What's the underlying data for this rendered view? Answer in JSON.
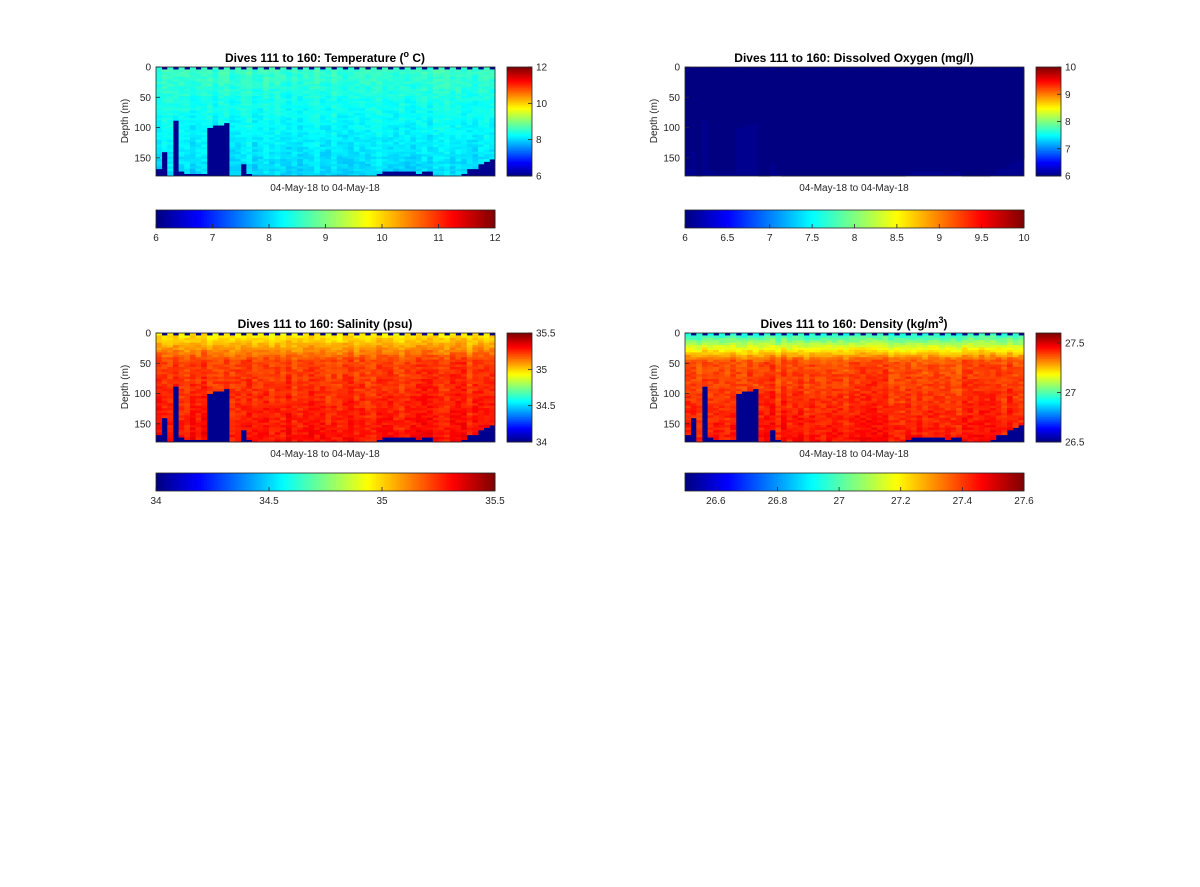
{
  "chart_data": [
    {
      "type": "heatmap",
      "title": "Dives 111 to 160: Temperature (",
      "title_sup": "o",
      "title_end": " C)",
      "xlabel": "04-May-18 to 04-May-18",
      "ylabel": "Depth (m)",
      "yticks": [
        "0",
        "50",
        "100",
        "150"
      ],
      "ylim": [
        0,
        180
      ],
      "yreversed": true,
      "colormap": "jet",
      "clim": [
        6,
        12
      ],
      "side_colorbar_ticks": [
        "6",
        "8",
        "10",
        "12"
      ],
      "bottom_colorbar_ticks": [
        "6",
        "7",
        "8",
        "9",
        "10",
        "11",
        "12"
      ],
      "field": {
        "surface": 8.6,
        "mid": 8.4,
        "deep": 8.0,
        "variance": 0.25
      },
      "gap_color": "#00008f"
    },
    {
      "type": "heatmap",
      "title": "Dives 111 to 160: Dissolved Oxygen (mg/l)",
      "title_sup": "",
      "title_end": "",
      "xlabel": "04-May-18 to 04-May-18",
      "ylabel": "Depth (m)",
      "yticks": [
        "0",
        "50",
        "100",
        "150"
      ],
      "ylim": [
        0,
        180
      ],
      "yreversed": true,
      "colormap": "jet",
      "clim": [
        6,
        10
      ],
      "side_colorbar_ticks": [
        "6",
        "7",
        "8",
        "9",
        "10"
      ],
      "bottom_colorbar_ticks": [
        "6",
        "6.5",
        "7",
        "7.5",
        "8",
        "8.5",
        "9",
        "9.5",
        "10"
      ],
      "uniform_value": 6,
      "gap_color": "#00008f"
    },
    {
      "type": "heatmap",
      "title": "Dives 111 to 160: Salinity (psu)",
      "title_sup": "",
      "title_end": "",
      "xlabel": "04-May-18 to 04-May-18",
      "ylabel": "Depth (m)",
      "yticks": [
        "0",
        "50",
        "100",
        "150"
      ],
      "ylim": [
        0,
        180
      ],
      "yreversed": true,
      "colormap": "jet",
      "clim": [
        34,
        35.5
      ],
      "side_colorbar_ticks": [
        "34",
        "34.5",
        "35",
        "35.5"
      ],
      "bottom_colorbar_ticks": [
        "34",
        "34.5",
        "35",
        "35.5"
      ],
      "field": {
        "surface": 34.95,
        "mid": 35.22,
        "deep": 35.3,
        "variance": 0.08
      },
      "gap_color": "#00008f"
    },
    {
      "type": "heatmap",
      "title": "Dives 111 to 160: Density (kg/m",
      "title_sup": "3",
      "title_end": ")",
      "xlabel": "04-May-18 to 04-May-18",
      "ylabel": "Depth (m)",
      "yticks": [
        "0",
        "50",
        "100",
        "150"
      ],
      "ylim": [
        0,
        180
      ],
      "yreversed": true,
      "colormap": "jet",
      "clim": [
        26.5,
        27.6
      ],
      "side_colorbar_ticks": [
        "26.5",
        "27",
        "27.5"
      ],
      "bottom_colorbar_ticks": [
        "26.6",
        "26.8",
        "27",
        "27.2",
        "27.4",
        "27.6"
      ],
      "bottom_colorbar_min": 26.5,
      "field": {
        "surface": 26.95,
        "mid": 27.38,
        "deep": 27.45,
        "variance": 0.06
      },
      "gap_color": "#00008f"
    }
  ],
  "profile_depths": [
    165,
    140,
    180,
    88,
    170,
    175,
    175,
    175,
    175,
    100,
    95,
    95,
    92,
    178,
    178,
    160,
    175,
    180,
    180,
    180,
    180,
    180,
    180,
    180,
    180,
    180,
    180,
    180,
    180,
    180,
    180,
    180,
    180,
    180,
    180,
    180,
    180,
    180,
    178,
    175,
    172,
    170,
    170,
    170,
    172,
    172,
    175,
    172,
    172,
    178,
    180,
    180,
    180,
    180,
    175,
    168,
    168,
    160,
    155,
    152
  ]
}
